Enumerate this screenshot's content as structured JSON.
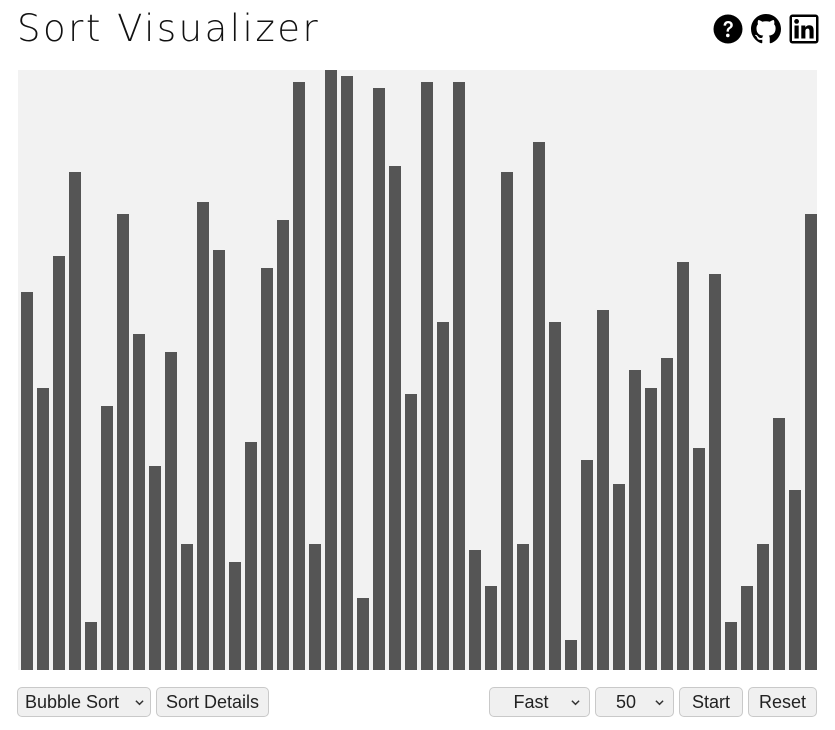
{
  "header": {
    "title": "Sort Visualizer",
    "icons": [
      "help-icon",
      "github-icon",
      "linkedin-icon"
    ]
  },
  "visualizer": {
    "max_value": 100,
    "bar_color": "#555555",
    "background_color": "#f2f2f2",
    "values": [
      63,
      47,
      69,
      83,
      8,
      44,
      76,
      56,
      34,
      53,
      21,
      78,
      70,
      18,
      38,
      67,
      75,
      98,
      21,
      100,
      99,
      12,
      97,
      84,
      46,
      98,
      58,
      98,
      20,
      14,
      83,
      21,
      88,
      58,
      5,
      35,
      60,
      31,
      50,
      47,
      52,
      68,
      37,
      66,
      8,
      14,
      21,
      42,
      30,
      76
    ]
  },
  "controls": {
    "algorithm": "Bubble Sort",
    "details_label": "Sort Details",
    "speed": "Fast",
    "size": "50",
    "start_label": "Start",
    "reset_label": "Reset"
  }
}
